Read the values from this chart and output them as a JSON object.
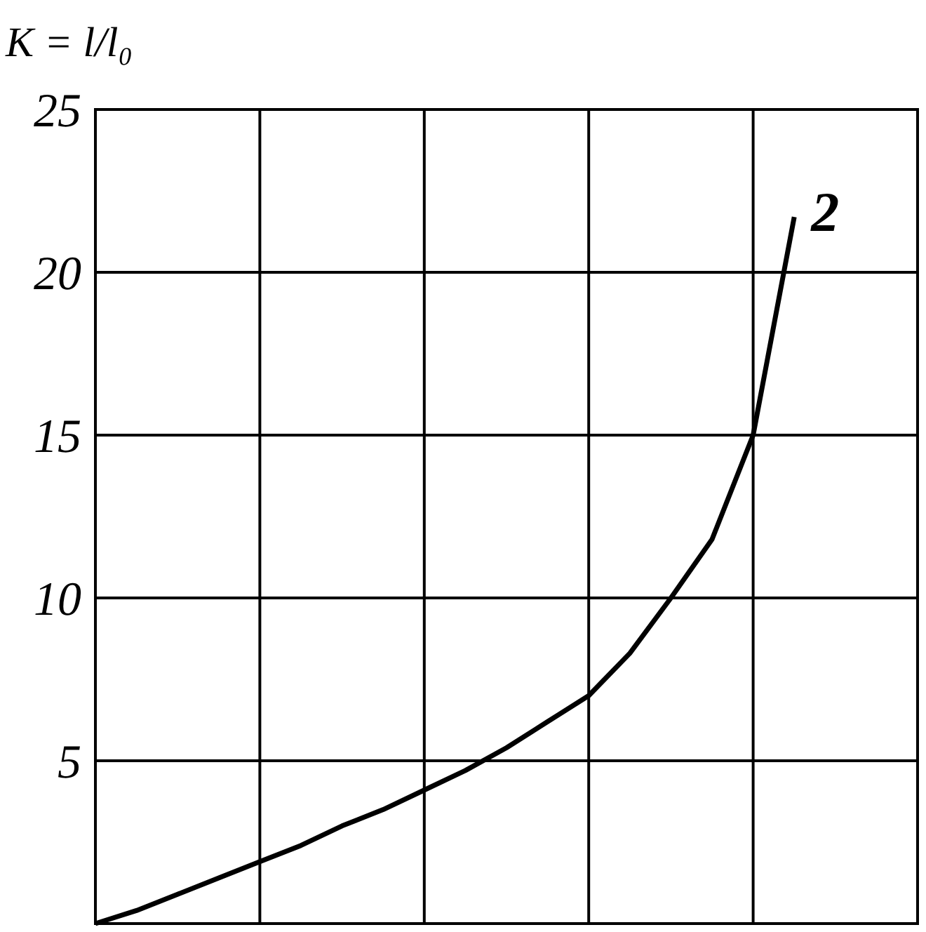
{
  "chart_data": {
    "type": "line",
    "ylabel": "K = l/l₀",
    "categories": [
      null,
      null,
      null,
      null,
      null,
      null,
      null,
      null,
      null,
      null,
      null,
      null,
      null,
      null,
      null,
      null,
      null,
      null,
      null,
      null,
      null
    ],
    "series": [
      {
        "color": "#000000",
        "values": [
          0,
          0.4,
          0.9,
          1.4,
          1.9,
          2.4,
          3.0,
          3.5,
          4.1,
          4.7,
          5.4,
          6.2,
          7.0,
          8.3,
          10.0,
          11.8,
          15.0,
          21.7,
          null,
          null,
          null
        ]
      }
    ],
    "ylim": [
      0,
      25
    ],
    "yticks": [
      5,
      10,
      15,
      20,
      25
    ],
    "grid": true,
    "marker": "none",
    "line_style": "solid",
    "annotations": [
      "2"
    ]
  }
}
